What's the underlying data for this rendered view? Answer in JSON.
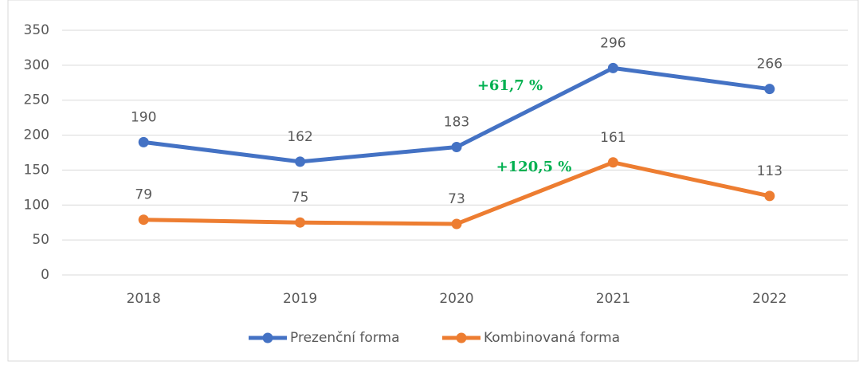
{
  "chart_data": {
    "type": "line",
    "categories": [
      "2018",
      "2019",
      "2020",
      "2021",
      "2022"
    ],
    "series": [
      {
        "name": "Prezenční forma",
        "color": "#4472c4",
        "values": [
          190,
          162,
          183,
          296,
          266
        ]
      },
      {
        "name": "Kombinovaná forma",
        "color": "#ed7d31",
        "values": [
          79,
          75,
          73,
          161,
          113
        ]
      }
    ],
    "annotations": [
      "+61,7 %",
      "+120,5 %"
    ],
    "annotation_color": "#00b050",
    "ylim": [
      0,
      350
    ],
    "yticks": [
      0,
      50,
      100,
      150,
      200,
      250,
      300,
      350
    ],
    "grid": true,
    "legend": "bottom"
  }
}
